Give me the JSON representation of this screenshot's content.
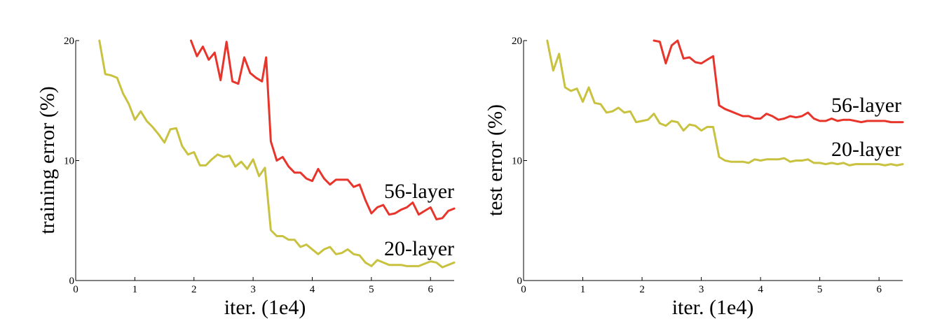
{
  "chart_data": [
    {
      "type": "line",
      "xlabel": "iter. (1e4)",
      "ylabel": "training error (%)",
      "xlim": [
        0,
        6.4
      ],
      "ylim": [
        0,
        20
      ],
      "xticks": [
        "0",
        "1",
        "2",
        "3",
        "4",
        "5",
        "6"
      ],
      "yticks": [
        "0",
        "10",
        "20"
      ],
      "grid": false,
      "series": [
        {
          "name": "56-layer",
          "color": "#e8352b",
          "x": [
            1.95,
            2.05,
            2.15,
            2.25,
            2.35,
            2.45,
            2.55,
            2.65,
            2.75,
            2.85,
            2.95,
            3.05,
            3.15,
            3.22,
            3.3,
            3.4,
            3.5,
            3.6,
            3.7,
            3.8,
            3.9,
            4.0,
            4.1,
            4.2,
            4.3,
            4.4,
            4.5,
            4.6,
            4.7,
            4.8,
            4.9,
            5.0,
            5.1,
            5.2,
            5.3,
            5.4,
            5.5,
            5.6,
            5.7,
            5.8,
            5.9,
            6.0,
            6.1,
            6.2,
            6.3,
            6.4
          ],
          "y": [
            20.0,
            18.7,
            19.5,
            18.4,
            19.0,
            16.7,
            19.9,
            16.6,
            16.4,
            18.6,
            17.3,
            16.9,
            16.6,
            18.6,
            11.6,
            10.0,
            10.3,
            9.5,
            9.0,
            9.0,
            8.5,
            8.3,
            9.3,
            8.5,
            8.0,
            8.4,
            8.4,
            8.4,
            7.8,
            8.0,
            6.7,
            5.6,
            6.1,
            6.3,
            5.5,
            5.6,
            5.9,
            6.1,
            6.5,
            5.5,
            5.8,
            6.1,
            5.1,
            5.2,
            5.8,
            6.0
          ]
        },
        {
          "name": "20-layer",
          "color": "#c8c240",
          "x": [
            0.4,
            0.5,
            0.6,
            0.7,
            0.8,
            0.9,
            1.0,
            1.1,
            1.2,
            1.3,
            1.4,
            1.5,
            1.6,
            1.7,
            1.8,
            1.9,
            2.0,
            2.1,
            2.2,
            2.3,
            2.4,
            2.5,
            2.6,
            2.7,
            2.8,
            2.9,
            3.0,
            3.1,
            3.2,
            3.3,
            3.4,
            3.5,
            3.6,
            3.7,
            3.8,
            3.9,
            4.0,
            4.1,
            4.2,
            4.3,
            4.4,
            4.5,
            4.6,
            4.7,
            4.8,
            4.9,
            5.0,
            5.1,
            5.2,
            5.3,
            5.4,
            5.5,
            5.6,
            5.7,
            5.8,
            5.9,
            6.0,
            6.1,
            6.2,
            6.3,
            6.4
          ],
          "y": [
            20.0,
            17.2,
            17.1,
            16.9,
            15.6,
            14.7,
            13.4,
            14.1,
            13.3,
            12.8,
            12.2,
            11.5,
            12.6,
            12.7,
            11.2,
            10.5,
            10.7,
            9.6,
            9.6,
            10.1,
            10.5,
            10.3,
            10.4,
            9.5,
            9.9,
            9.3,
            10.1,
            8.7,
            9.4,
            4.2,
            3.7,
            3.7,
            3.4,
            3.4,
            2.8,
            3.0,
            2.6,
            2.2,
            2.6,
            2.8,
            2.2,
            2.3,
            2.6,
            2.2,
            2.1,
            1.5,
            1.2,
            1.7,
            1.5,
            1.3,
            1.3,
            1.3,
            1.2,
            1.2,
            1.2,
            1.4,
            1.6,
            1.5,
            1.1,
            1.3,
            1.5
          ]
        }
      ]
    },
    {
      "type": "line",
      "xlabel": "iter. (1e4)",
      "ylabel": "test error (%)",
      "xlim": [
        0,
        6.4
      ],
      "ylim": [
        0,
        20
      ],
      "xticks": [
        "0",
        "1",
        "2",
        "3",
        "4",
        "5",
        "6"
      ],
      "yticks": [
        "0",
        "10",
        "20"
      ],
      "grid": false,
      "series": [
        {
          "name": "56-layer",
          "color": "#e8352b",
          "x": [
            2.2,
            2.3,
            2.4,
            2.5,
            2.6,
            2.7,
            2.8,
            2.9,
            3.0,
            3.1,
            3.2,
            3.3,
            3.4,
            3.5,
            3.6,
            3.7,
            3.8,
            3.9,
            4.0,
            4.1,
            4.2,
            4.3,
            4.4,
            4.5,
            4.6,
            4.7,
            4.8,
            4.9,
            5.0,
            5.1,
            5.2,
            5.3,
            5.4,
            5.5,
            5.6,
            5.7,
            5.8,
            5.9,
            6.0,
            6.1,
            6.2,
            6.3,
            6.4
          ],
          "y": [
            20.0,
            19.9,
            18.1,
            19.6,
            20.0,
            18.5,
            18.6,
            18.2,
            18.1,
            18.4,
            18.7,
            14.6,
            14.3,
            14.1,
            13.9,
            13.7,
            13.7,
            13.5,
            13.5,
            13.9,
            13.7,
            13.4,
            13.5,
            13.7,
            13.6,
            13.7,
            14.0,
            13.5,
            13.3,
            13.3,
            13.5,
            13.3,
            13.4,
            13.4,
            13.3,
            13.2,
            13.3,
            13.3,
            13.3,
            13.3,
            13.2,
            13.2,
            13.2
          ]
        },
        {
          "name": "20-layer",
          "color": "#c8c240",
          "x": [
            0.4,
            0.5,
            0.6,
            0.7,
            0.8,
            0.9,
            1.0,
            1.1,
            1.2,
            1.3,
            1.4,
            1.5,
            1.6,
            1.7,
            1.8,
            1.9,
            2.0,
            2.1,
            2.2,
            2.3,
            2.4,
            2.5,
            2.6,
            2.7,
            2.8,
            2.9,
            3.0,
            3.1,
            3.2,
            3.3,
            3.4,
            3.5,
            3.6,
            3.7,
            3.8,
            3.9,
            4.0,
            4.1,
            4.2,
            4.3,
            4.4,
            4.5,
            4.6,
            4.7,
            4.8,
            4.9,
            5.0,
            5.1,
            5.2,
            5.3,
            5.4,
            5.5,
            5.6,
            5.7,
            5.8,
            5.9,
            6.0,
            6.1,
            6.2,
            6.3,
            6.4
          ],
          "y": [
            20.0,
            17.5,
            18.9,
            16.1,
            15.8,
            16.0,
            14.9,
            16.1,
            14.8,
            14.7,
            14.0,
            14.1,
            14.4,
            14.0,
            14.1,
            13.2,
            13.3,
            13.4,
            13.9,
            13.1,
            12.9,
            13.3,
            13.2,
            12.5,
            13.0,
            12.9,
            12.5,
            12.8,
            12.8,
            10.3,
            10.0,
            9.9,
            9.9,
            9.9,
            9.8,
            10.1,
            10.0,
            10.1,
            10.1,
            10.1,
            10.2,
            9.9,
            10.0,
            10.0,
            10.1,
            9.8,
            9.8,
            9.7,
            9.8,
            9.7,
            9.8,
            9.6,
            9.7,
            9.7,
            9.7,
            9.7,
            9.7,
            9.6,
            9.7,
            9.6,
            9.7
          ]
        }
      ]
    }
  ]
}
